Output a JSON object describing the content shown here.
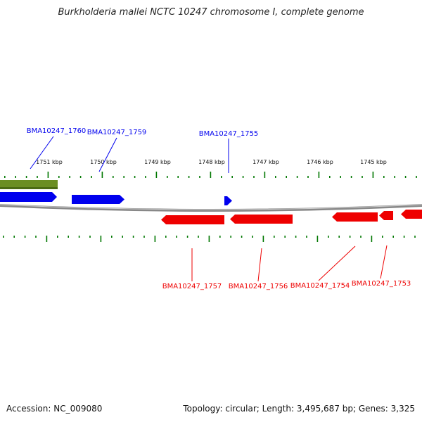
{
  "title": "Burkholderia mallei NCTC 10247 chromosome I, complete genome",
  "footer": {
    "accession": "Accession: NC_009080",
    "summary": "Topology: circular; Length: 3,495,687 bp; Genes: 3,325"
  },
  "colors": {
    "forward": "#0000ee",
    "reverse": "#ee0000",
    "other": "#6b8e23",
    "ticks": "#007700",
    "backbone": "#888888"
  },
  "ruler": {
    "labels": [
      "1751 kbp",
      "1750 kbp",
      "1749 kbp",
      "1748 kbp",
      "1747 kbp",
      "1746 kbp",
      "1745 kbp"
    ]
  },
  "genes_forward": [
    {
      "id": "BMA10247_1760",
      "color": "other"
    },
    {
      "id": "BMA10247_1759",
      "color": "forward"
    },
    {
      "id": "BMA10247_1755",
      "color": "forward"
    }
  ],
  "genes_reverse": [
    {
      "id": "BMA10247_1757",
      "color": "reverse"
    },
    {
      "id": "BMA10247_1756",
      "color": "reverse"
    },
    {
      "id": "BMA10247_1754",
      "color": "reverse"
    },
    {
      "id": "BMA10247_1753",
      "color": "reverse"
    }
  ]
}
